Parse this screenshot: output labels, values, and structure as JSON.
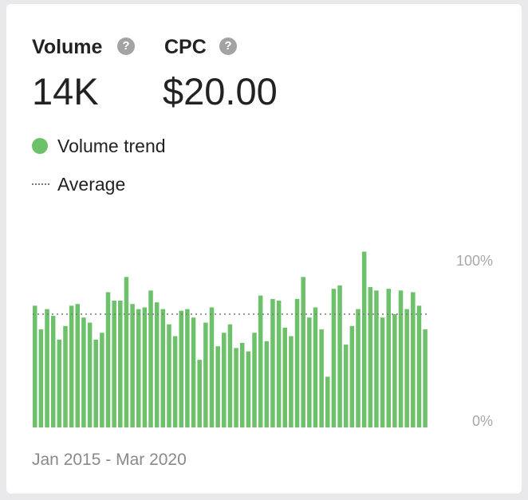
{
  "metrics": {
    "volume": {
      "label": "Volume",
      "value": "14K"
    },
    "cpc": {
      "label": "CPC",
      "value": "$20.00"
    },
    "help_glyph": "?"
  },
  "legend": {
    "trend_label": "Volume trend",
    "average_label": "Average"
  },
  "date_range": "Jan 2015 - Mar 2020",
  "colors": {
    "bar": "#6dc16a",
    "average_line": "#7a7a7a",
    "tick_text": "#a8a8a8"
  },
  "chart_data": {
    "type": "bar",
    "title": "",
    "xlabel": "",
    "ylabel": "",
    "ylim": [
      0,
      100
    ],
    "yticks": [
      "100%",
      "0%"
    ],
    "average": 67,
    "values": [
      72,
      58,
      70,
      66,
      52,
      60,
      72,
      73,
      65,
      62,
      52,
      56,
      80,
      75,
      75,
      89,
      73,
      70,
      71,
      81,
      74,
      70,
      61,
      54,
      69,
      70,
      65,
      40,
      62,
      71,
      48,
      56,
      61,
      47,
      50,
      45,
      56,
      78,
      51,
      76,
      75,
      59,
      54,
      76,
      89,
      65,
      71,
      58,
      30,
      82,
      84,
      49,
      60,
      70,
      104,
      83,
      81,
      65,
      82,
      67,
      81,
      70,
      80,
      72,
      58
    ]
  }
}
